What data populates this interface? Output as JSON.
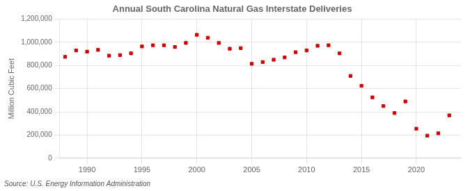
{
  "chart_data": {
    "type": "scatter",
    "title": "Annual South Carolina Natural Gas Interstate Deliveries",
    "y_label": "Million Cubic Feet",
    "annotations": [
      "Source: U.S. Energy Information Administration"
    ],
    "x": [
      1988,
      1989,
      1990,
      1991,
      1992,
      1993,
      1994,
      1995,
      1996,
      1997,
      1998,
      1999,
      2000,
      2001,
      2002,
      2003,
      2004,
      2005,
      2006,
      2007,
      2008,
      2009,
      2010,
      2011,
      2012,
      2013,
      2014,
      2015,
      2016,
      2017,
      2018,
      2019,
      2020,
      2021,
      2022,
      2023
    ],
    "values": [
      875000,
      930000,
      920000,
      935000,
      885000,
      890000,
      905000,
      965000,
      975000,
      975000,
      960000,
      995000,
      1065000,
      1040000,
      995000,
      945000,
      950000,
      815000,
      830000,
      850000,
      870000,
      915000,
      930000,
      970000,
      975000,
      905000,
      710000,
      625000,
      525000,
      450000,
      390000,
      490000,
      255000,
      195000,
      215000,
      370000
    ],
    "color": "#cc0000",
    "marker": "square",
    "xlim": [
      1987.5,
      2024
    ],
    "xticks": [
      1990,
      1995,
      2000,
      2005,
      2010,
      2015,
      2020
    ],
    "ylim": [
      0,
      1200000
    ],
    "yticks": [
      0,
      {
        "value": 200000,
        "label": "200,000"
      },
      {
        "value": 400000,
        "label": "400,000"
      },
      {
        "value": 600000,
        "label": "600,000"
      },
      {
        "value": 800000,
        "label": "800,000"
      },
      {
        "value": 1000000,
        "label": "1,000,000"
      },
      {
        "value": 1200000,
        "label": "1,200,000"
      }
    ],
    "grid": true
  }
}
